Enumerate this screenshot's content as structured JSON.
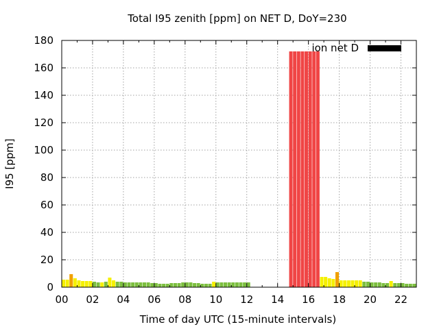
{
  "chart_data": {
    "type": "bar",
    "title": "Total I95 zenith [ppm] on NET D, DoY=230",
    "xlabel": "Time of day UTC (15-minute intervals)",
    "ylabel": "I95 [ppm]",
    "xlim": [
      0,
      23
    ],
    "ylim": [
      0,
      180
    ],
    "xtick_values": [
      0,
      2,
      4,
      6,
      8,
      10,
      12,
      14,
      16,
      18,
      20,
      22
    ],
    "xtick_labels": [
      "00",
      "02",
      "04",
      "06",
      "08",
      "10",
      "12",
      "14",
      "16",
      "18",
      "20",
      "22"
    ],
    "ytick_values": [
      0,
      20,
      40,
      60,
      80,
      100,
      120,
      140,
      160,
      180
    ],
    "ytick_labels": [
      "0",
      "20",
      "40",
      "60",
      "80",
      "100",
      "120",
      "140",
      "160",
      "180"
    ],
    "grid": true,
    "legend": {
      "label": "ion net D",
      "color": "#000000",
      "placement": "top-right"
    },
    "bar_width_hours": 0.25,
    "colors": {
      "green": "#7cbe3f",
      "yellow": "#f5f000",
      "orange": "#f0a000",
      "red": "#f04545"
    },
    "bars": [
      {
        "x": 0.0,
        "value": 5.5,
        "color": "yellow"
      },
      {
        "x": 0.25,
        "value": 5.5,
        "color": "yellow"
      },
      {
        "x": 0.5,
        "value": 9.5,
        "color": "orange"
      },
      {
        "x": 0.75,
        "value": 6.5,
        "color": "yellow"
      },
      {
        "x": 1.0,
        "value": 5.0,
        "color": "yellow"
      },
      {
        "x": 1.25,
        "value": 4.5,
        "color": "yellow"
      },
      {
        "x": 1.5,
        "value": 4.5,
        "color": "yellow"
      },
      {
        "x": 1.75,
        "value": 4.5,
        "color": "yellow"
      },
      {
        "x": 2.0,
        "value": 4.0,
        "color": "green"
      },
      {
        "x": 2.25,
        "value": 3.5,
        "color": "green"
      },
      {
        "x": 2.5,
        "value": 3.5,
        "color": "yellow"
      },
      {
        "x": 2.75,
        "value": 4.0,
        "color": "green"
      },
      {
        "x": 3.0,
        "value": 7.0,
        "color": "yellow"
      },
      {
        "x": 3.25,
        "value": 5.0,
        "color": "yellow"
      },
      {
        "x": 3.5,
        "value": 4.0,
        "color": "green"
      },
      {
        "x": 3.75,
        "value": 4.0,
        "color": "green"
      },
      {
        "x": 4.0,
        "value": 3.5,
        "color": "green"
      },
      {
        "x": 4.25,
        "value": 3.5,
        "color": "green"
      },
      {
        "x": 4.5,
        "value": 3.5,
        "color": "green"
      },
      {
        "x": 4.75,
        "value": 3.5,
        "color": "green"
      },
      {
        "x": 5.0,
        "value": 3.5,
        "color": "green"
      },
      {
        "x": 5.25,
        "value": 3.5,
        "color": "green"
      },
      {
        "x": 5.5,
        "value": 3.5,
        "color": "green"
      },
      {
        "x": 5.75,
        "value": 3.0,
        "color": "green"
      },
      {
        "x": 6.0,
        "value": 3.0,
        "color": "green"
      },
      {
        "x": 6.25,
        "value": 2.5,
        "color": "green"
      },
      {
        "x": 6.5,
        "value": 2.5,
        "color": "green"
      },
      {
        "x": 6.75,
        "value": 2.5,
        "color": "green"
      },
      {
        "x": 7.0,
        "value": 3.0,
        "color": "green"
      },
      {
        "x": 7.25,
        "value": 3.0,
        "color": "green"
      },
      {
        "x": 7.5,
        "value": 3.0,
        "color": "green"
      },
      {
        "x": 7.75,
        "value": 3.5,
        "color": "green"
      },
      {
        "x": 8.0,
        "value": 3.5,
        "color": "green"
      },
      {
        "x": 8.25,
        "value": 3.5,
        "color": "green"
      },
      {
        "x": 8.5,
        "value": 3.0,
        "color": "green"
      },
      {
        "x": 8.75,
        "value": 3.0,
        "color": "green"
      },
      {
        "x": 9.0,
        "value": 2.5,
        "color": "green"
      },
      {
        "x": 9.25,
        "value": 2.5,
        "color": "green"
      },
      {
        "x": 9.5,
        "value": 2.5,
        "color": "green"
      },
      {
        "x": 9.75,
        "value": 4.0,
        "color": "yellow"
      },
      {
        "x": 10.0,
        "value": 3.5,
        "color": "green"
      },
      {
        "x": 10.25,
        "value": 3.5,
        "color": "green"
      },
      {
        "x": 10.5,
        "value": 3.5,
        "color": "green"
      },
      {
        "x": 10.75,
        "value": 3.5,
        "color": "green"
      },
      {
        "x": 11.0,
        "value": 3.5,
        "color": "green"
      },
      {
        "x": 11.25,
        "value": 3.5,
        "color": "green"
      },
      {
        "x": 11.5,
        "value": 3.5,
        "color": "green"
      },
      {
        "x": 11.75,
        "value": 3.5,
        "color": "green"
      },
      {
        "x": 12.0,
        "value": 3.5,
        "color": "green"
      },
      {
        "x": 14.75,
        "value": 172,
        "color": "red"
      },
      {
        "x": 15.0,
        "value": 172,
        "color": "red"
      },
      {
        "x": 15.25,
        "value": 172,
        "color": "red"
      },
      {
        "x": 15.5,
        "value": 172,
        "color": "red"
      },
      {
        "x": 15.75,
        "value": 172,
        "color": "red"
      },
      {
        "x": 16.0,
        "value": 172,
        "color": "red"
      },
      {
        "x": 16.25,
        "value": 172,
        "color": "red"
      },
      {
        "x": 16.5,
        "value": 172,
        "color": "red"
      },
      {
        "x": 16.75,
        "value": 7.5,
        "color": "yellow"
      },
      {
        "x": 17.0,
        "value": 7.5,
        "color": "yellow"
      },
      {
        "x": 17.25,
        "value": 6.5,
        "color": "yellow"
      },
      {
        "x": 17.5,
        "value": 6.0,
        "color": "yellow"
      },
      {
        "x": 17.75,
        "value": 11.0,
        "color": "orange"
      },
      {
        "x": 18.0,
        "value": 5.0,
        "color": "yellow"
      },
      {
        "x": 18.25,
        "value": 5.0,
        "color": "yellow"
      },
      {
        "x": 18.5,
        "value": 5.0,
        "color": "yellow"
      },
      {
        "x": 18.75,
        "value": 5.0,
        "color": "yellow"
      },
      {
        "x": 19.0,
        "value": 5.0,
        "color": "yellow"
      },
      {
        "x": 19.25,
        "value": 5.0,
        "color": "yellow"
      },
      {
        "x": 19.5,
        "value": 4.0,
        "color": "green"
      },
      {
        "x": 19.75,
        "value": 4.0,
        "color": "green"
      },
      {
        "x": 20.0,
        "value": 3.5,
        "color": "green"
      },
      {
        "x": 20.25,
        "value": 3.5,
        "color": "green"
      },
      {
        "x": 20.5,
        "value": 3.5,
        "color": "green"
      },
      {
        "x": 20.75,
        "value": 3.0,
        "color": "green"
      },
      {
        "x": 21.0,
        "value": 3.0,
        "color": "green"
      },
      {
        "x": 21.25,
        "value": 4.5,
        "color": "yellow"
      },
      {
        "x": 21.5,
        "value": 3.0,
        "color": "green"
      },
      {
        "x": 21.75,
        "value": 3.0,
        "color": "green"
      },
      {
        "x": 22.0,
        "value": 3.0,
        "color": "green"
      },
      {
        "x": 22.25,
        "value": 2.5,
        "color": "green"
      },
      {
        "x": 22.5,
        "value": 2.5,
        "color": "green"
      },
      {
        "x": 22.75,
        "value": 2.5,
        "color": "green"
      }
    ]
  }
}
